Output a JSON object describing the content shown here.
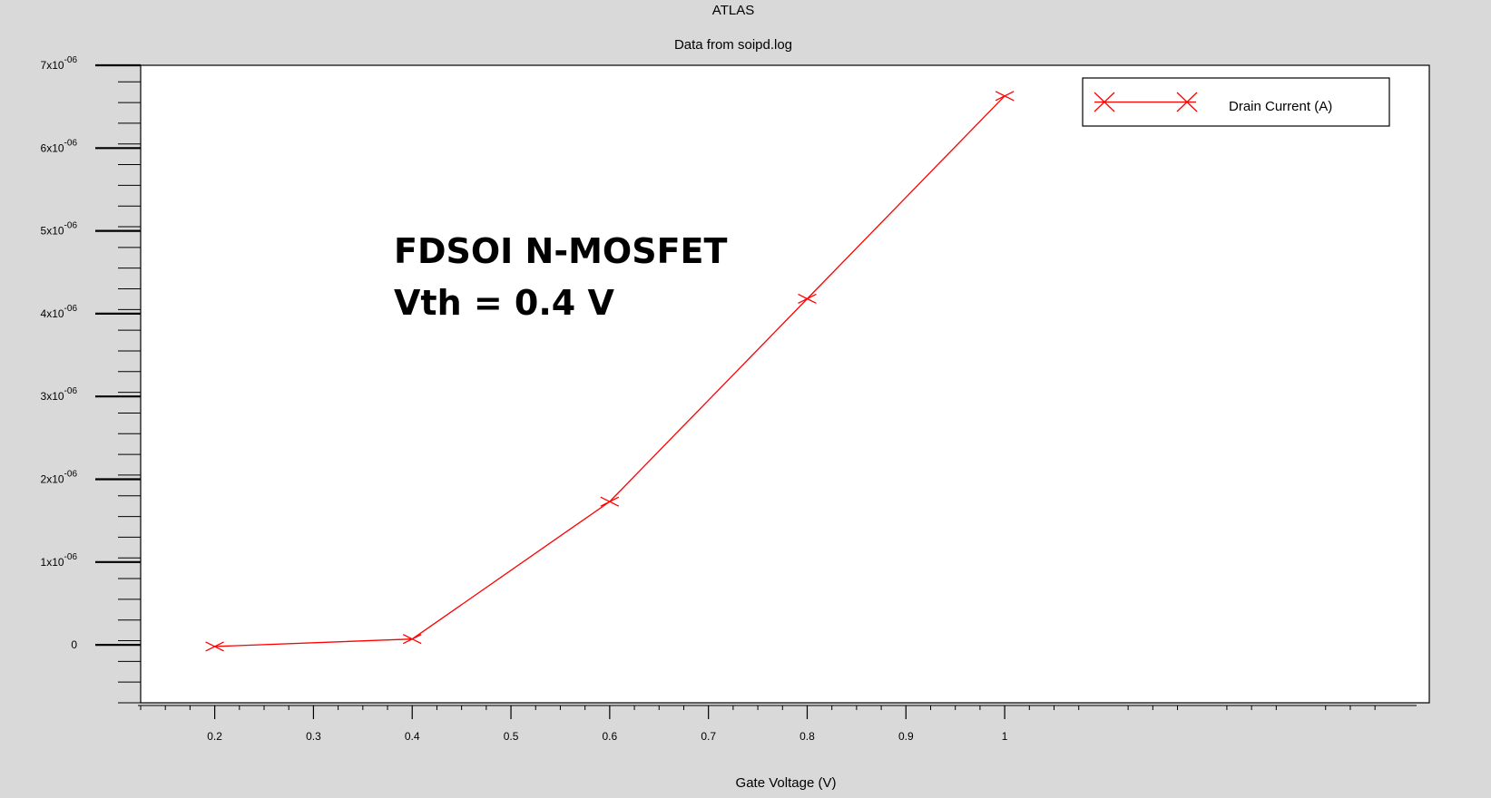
{
  "header": {
    "title": "ATLAS",
    "subtitle": "Data from soipd.log"
  },
  "chart_data": {
    "type": "line",
    "title": "ATLAS",
    "subtitle": "Data from soipd.log",
    "xlabel": "Gate Voltage (V)",
    "ylabel": "",
    "xlim": [
      0.125,
      1.43
    ],
    "ylim": [
      -7e-07,
      7e-06
    ],
    "x_ticks": [
      0.2,
      0.3,
      0.4,
      0.5,
      0.6,
      0.7,
      0.8,
      0.9,
      1.0
    ],
    "x_tick_labels": [
      "0.2",
      "0.3",
      "0.4",
      "0.5",
      "0.6",
      "0.7",
      "0.8",
      "0.9",
      "1"
    ],
    "y_ticks": [
      0,
      1e-06,
      2e-06,
      3e-06,
      4e-06,
      5e-06,
      6e-06,
      7e-06
    ],
    "y_tick_labels": [
      {
        "base": "0",
        "exp": ""
      },
      {
        "base": "1x10",
        "exp": "-06"
      },
      {
        "base": "2x10",
        "exp": "-06"
      },
      {
        "base": "3x10",
        "exp": "-06"
      },
      {
        "base": "4x10",
        "exp": "-06"
      },
      {
        "base": "5x10",
        "exp": "-06"
      },
      {
        "base": "6x10",
        "exp": "-06"
      },
      {
        "base": "7x10",
        "exp": "-06"
      }
    ],
    "grid": false,
    "legend_position": "top-right",
    "series": [
      {
        "name": "Drain Current (A)",
        "color": "#ff0000",
        "marker": "x",
        "x": [
          0.2,
          0.4,
          0.6,
          0.8,
          1.0
        ],
        "y": [
          -2e-08,
          7e-08,
          1.73e-06,
          4.18e-06,
          6.63e-06
        ]
      }
    ],
    "annotation": {
      "line1": "FDSOI N-MOSFET",
      "line2": "Vth = 0.4 V"
    }
  }
}
